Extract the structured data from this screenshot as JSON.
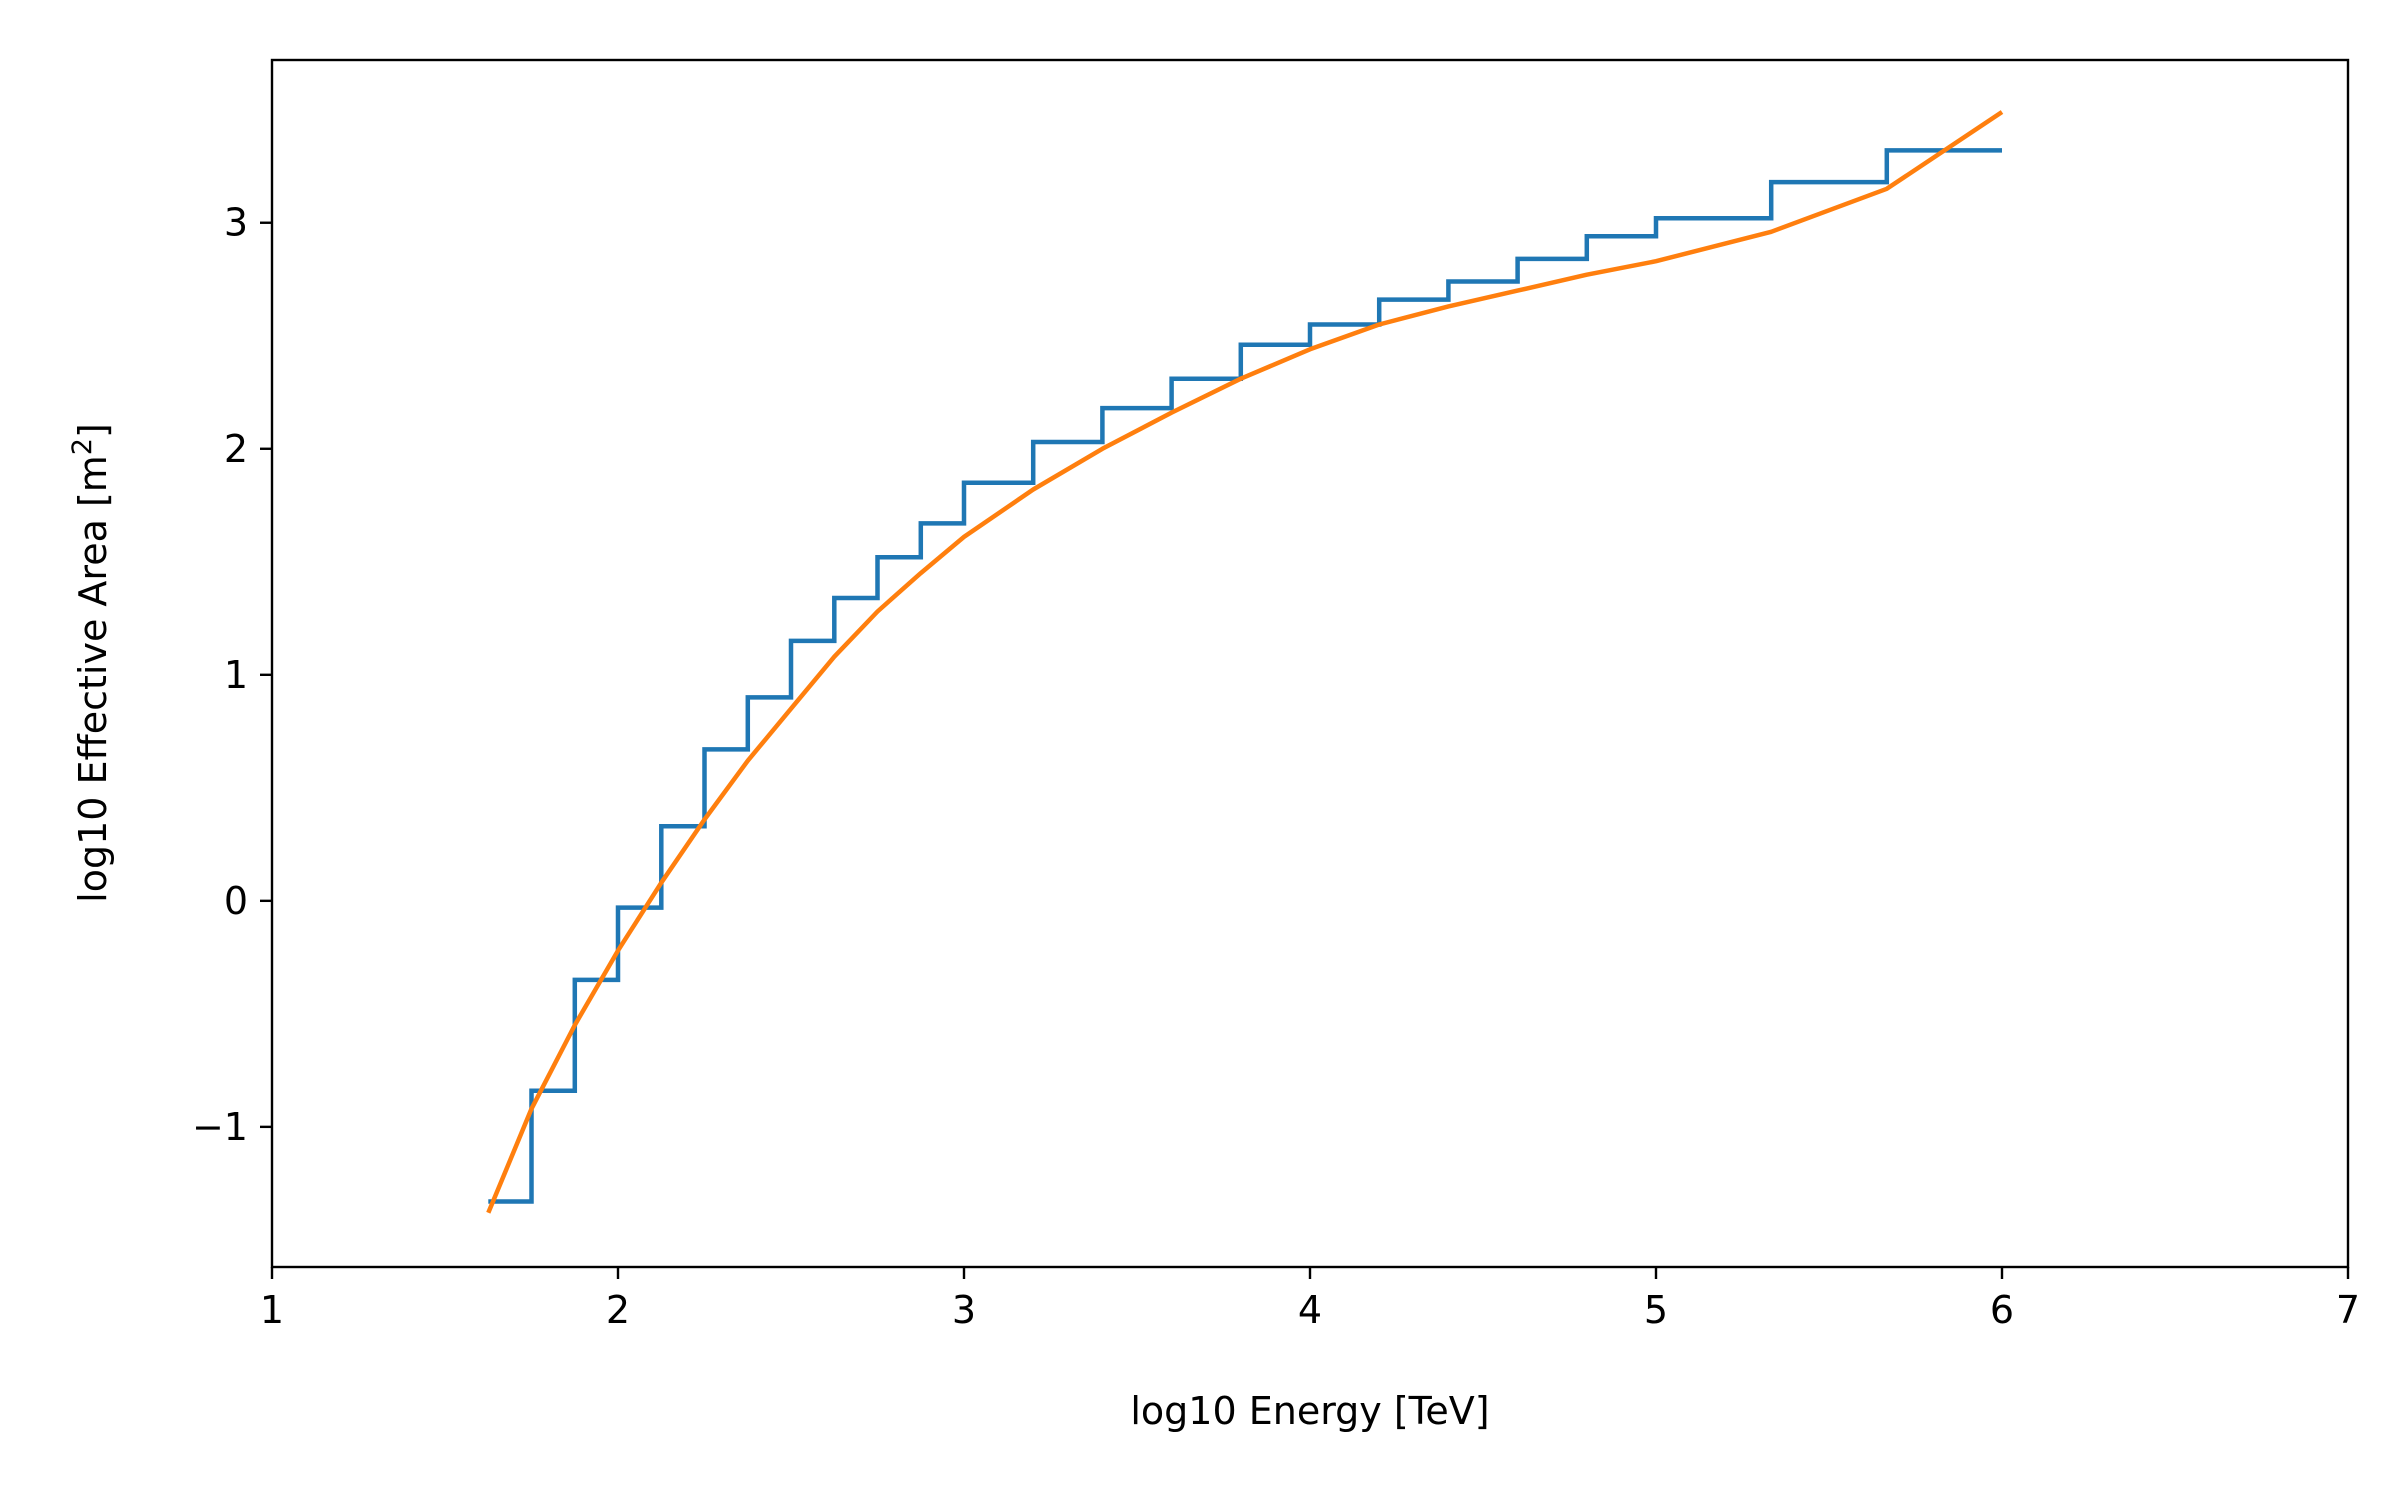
{
  "chart_data": {
    "type": "line",
    "title": "",
    "xlabel": "log10 Energy [TeV]",
    "ylabel_main": "log10 Effective Area [m",
    "ylabel_sup": "2",
    "ylabel_end": "]",
    "xlim": [
      1,
      7
    ],
    "ylim": [
      -1.62,
      3.72
    ],
    "xticks": [
      1,
      2,
      3,
      4,
      5,
      6,
      7
    ],
    "yticks": [
      -1,
      0,
      1,
      2,
      3
    ],
    "xtick_labels": [
      "1",
      "2",
      "3",
      "4",
      "5",
      "6",
      "7"
    ],
    "ytick_labels": [
      "−1",
      "0",
      "1",
      "2",
      "3"
    ],
    "grid": false,
    "series": [
      {
        "style": "step",
        "color": "#1f77b4",
        "edges": [
          1.625,
          1.75,
          1.875,
          2.0,
          2.125,
          2.25,
          2.375,
          2.5,
          2.625,
          2.75,
          2.875,
          3.0,
          3.2,
          3.4,
          3.6,
          3.8,
          4.0,
          4.2,
          4.4,
          4.6,
          4.8,
          5.0,
          5.333,
          5.667,
          6.0
        ],
        "values": [
          -1.33,
          -0.84,
          -0.35,
          -0.03,
          0.33,
          0.67,
          0.9,
          1.15,
          1.34,
          1.52,
          1.67,
          1.85,
          2.03,
          2.18,
          2.31,
          2.46,
          2.55,
          2.66,
          2.74,
          2.84,
          2.94,
          3.02,
          3.18,
          3.32
        ]
      },
      {
        "style": "line",
        "color": "#ff7f0e",
        "x": [
          1.625,
          1.75,
          1.875,
          2.0,
          2.125,
          2.25,
          2.375,
          2.5,
          2.625,
          2.75,
          2.875,
          3.0,
          3.2,
          3.4,
          3.6,
          3.8,
          4.0,
          4.2,
          4.4,
          4.6,
          4.8,
          5.0,
          5.333,
          5.667,
          6.0
        ],
        "y": [
          -1.38,
          -0.92,
          -0.55,
          -0.22,
          0.08,
          0.36,
          0.62,
          0.85,
          1.08,
          1.28,
          1.45,
          1.61,
          1.82,
          2.0,
          2.16,
          2.31,
          2.44,
          2.55,
          2.63,
          2.7,
          2.77,
          2.83,
          2.96,
          3.15,
          3.49
        ]
      }
    ]
  }
}
